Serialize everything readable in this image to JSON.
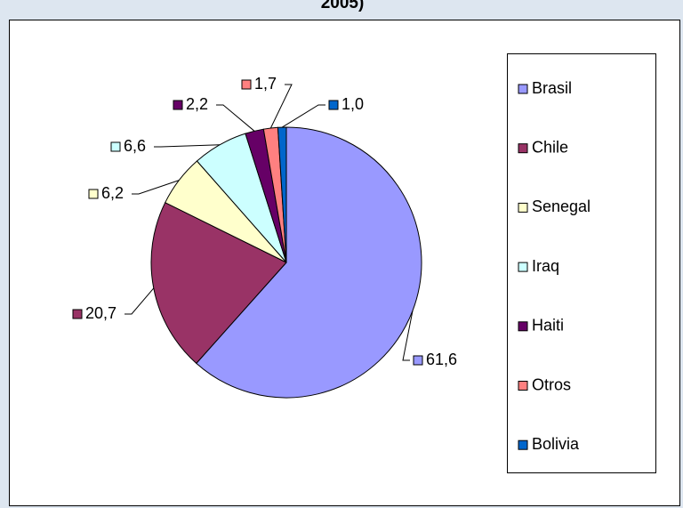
{
  "chart_data": {
    "type": "pie",
    "title": "2005)",
    "categories": [
      "Brasil",
      "Chile",
      "Senegal",
      "Iraq",
      "Haiti",
      "Otros",
      "Bolivia"
    ],
    "values": [
      61.6,
      20.7,
      6.2,
      6.6,
      2.2,
      1.7,
      1.0
    ],
    "value_labels": [
      "61,6",
      "20,7",
      "6,2",
      "6,6",
      "2,2",
      "1,7",
      "1,0"
    ],
    "colors": [
      "#9999ff",
      "#993366",
      "#ffffcc",
      "#ccffff",
      "#660066",
      "#ff8080",
      "#0066cc"
    ],
    "legend": "right"
  }
}
